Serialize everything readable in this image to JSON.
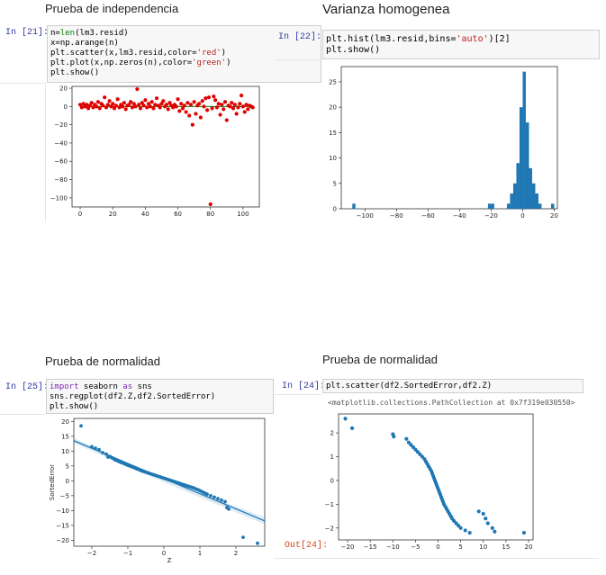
{
  "cells": [
    {
      "id": "independencia",
      "heading": "Prueba de independencia",
      "prompt": "In [21]:",
      "code": [
        "n=len(lm3.resid)",
        "x=np.arange(n)",
        "plt.scatter(x,lm3.resid,color='red')",
        "plt.plot(x,np.zeros(n),color='green')",
        "plt.show()"
      ]
    },
    {
      "id": "varianza",
      "heading": "Varianza homogenea",
      "prompt": "In [22]:",
      "code": [
        "plt.hist(lm3.resid,bins='auto')[2]",
        "plt.show()"
      ]
    },
    {
      "id": "normalidad-regplot",
      "heading": "Prueba de normalidad",
      "prompt": "In [25]:",
      "code": [
        "import seaborn as sns",
        "sns.regplot(df2.Z,df2.SortedError)",
        "plt.show()"
      ]
    },
    {
      "id": "normalidad-scatter",
      "heading": "Prueba de normalidad",
      "prompt": "In [24]:",
      "code": [
        "plt.scatter(df2.SortedError,df2.Z)"
      ],
      "out_prompt": "Out[24]:",
      "out_text": "<matplotlib.collections.PathCollection at 0x7f319e030550>"
    }
  ],
  "colors": {
    "prompt": "#30399f",
    "out_prompt": "#d84315",
    "scatter_red": "#e00000",
    "zero_line": "#008000",
    "hist_bar": "#1f77b4",
    "points_blue": "#1f77b4"
  },
  "chart_data": [
    {
      "type": "scatter",
      "xlim": [
        -5,
        110
      ],
      "ylim": [
        -110,
        22
      ],
      "xticks": [
        0,
        20,
        40,
        60,
        80,
        100
      ],
      "yticks": [
        20,
        0,
        -20,
        -40,
        -60,
        -80,
        -100
      ],
      "xtick_labels": [
        "0",
        "20",
        "40",
        "60",
        "80",
        "100"
      ],
      "ytick_labels": [
        "20",
        "0",
        "−20",
        "−40",
        "−60",
        "−80",
        "−100"
      ],
      "points": [
        [
          0,
          2
        ],
        [
          1,
          -1
        ],
        [
          2,
          3
        ],
        [
          3,
          0
        ],
        [
          4,
          2
        ],
        [
          5,
          -2
        ],
        [
          6,
          1
        ],
        [
          7,
          4
        ],
        [
          8,
          -1
        ],
        [
          9,
          2
        ],
        [
          10,
          0
        ],
        [
          11,
          5
        ],
        [
          12,
          -2
        ],
        [
          13,
          3
        ],
        [
          14,
          1
        ],
        [
          15,
          10
        ],
        [
          16,
          -1
        ],
        [
          17,
          2
        ],
        [
          18,
          6
        ],
        [
          19,
          0
        ],
        [
          20,
          3
        ],
        [
          21,
          -2
        ],
        [
          22,
          1
        ],
        [
          23,
          8
        ],
        [
          24,
          -1
        ],
        [
          25,
          2
        ],
        [
          26,
          0
        ],
        [
          27,
          4
        ],
        [
          28,
          -3
        ],
        [
          29,
          1
        ],
        [
          30,
          2
        ],
        [
          31,
          5
        ],
        [
          32,
          -1
        ],
        [
          33,
          3
        ],
        [
          34,
          0
        ],
        [
          35,
          19
        ],
        [
          36,
          2
        ],
        [
          37,
          -2
        ],
        [
          38,
          4
        ],
        [
          39,
          1
        ],
        [
          40,
          7
        ],
        [
          41,
          -1
        ],
        [
          42,
          3
        ],
        [
          43,
          0
        ],
        [
          44,
          5
        ],
        [
          45,
          -2
        ],
        [
          46,
          2
        ],
        [
          47,
          9
        ],
        [
          48,
          1
        ],
        [
          49,
          -1
        ],
        [
          50,
          3
        ],
        [
          51,
          6
        ],
        [
          52,
          0
        ],
        [
          53,
          2
        ],
        [
          54,
          -3
        ],
        [
          55,
          4
        ],
        [
          56,
          1
        ],
        [
          57,
          -1
        ],
        [
          58,
          2
        ],
        [
          59,
          0
        ],
        [
          60,
          8
        ],
        [
          61,
          -5
        ],
        [
          62,
          3
        ],
        [
          63,
          -2
        ],
        [
          64,
          1
        ],
        [
          65,
          -6
        ],
        [
          66,
          4
        ],
        [
          67,
          -10
        ],
        [
          68,
          2
        ],
        [
          69,
          -20
        ],
        [
          70,
          5
        ],
        [
          71,
          -8
        ],
        [
          72,
          1
        ],
        [
          73,
          3
        ],
        [
          74,
          -12
        ],
        [
          75,
          6
        ],
        [
          76,
          0
        ],
        [
          77,
          9
        ],
        [
          78,
          -4
        ],
        [
          79,
          10
        ],
        [
          80,
          -107
        ],
        [
          81,
          -2
        ],
        [
          82,
          11
        ],
        [
          83,
          7
        ],
        [
          84,
          -1
        ],
        [
          85,
          3
        ],
        [
          86,
          -9
        ],
        [
          87,
          2
        ],
        [
          88,
          -3
        ],
        [
          89,
          5
        ],
        [
          90,
          -15
        ],
        [
          91,
          1
        ],
        [
          92,
          0
        ],
        [
          93,
          4
        ],
        [
          94,
          -2
        ],
        [
          95,
          2
        ],
        [
          96,
          -8
        ],
        [
          97,
          -1
        ],
        [
          98,
          3
        ],
        [
          99,
          12
        ],
        [
          100,
          0
        ],
        [
          101,
          -6
        ],
        [
          102,
          2
        ],
        [
          103,
          -3
        ],
        [
          104,
          1
        ],
        [
          105,
          0
        ],
        [
          106,
          -1
        ]
      ],
      "zero_line": true
    },
    {
      "type": "bar",
      "xlim": [
        -115,
        22
      ],
      "ylim": [
        0,
        28
      ],
      "xticks": [
        -100,
        -80,
        -60,
        -40,
        -20,
        0,
        20
      ],
      "yticks": [
        0,
        5,
        10,
        15,
        20,
        25
      ],
      "xtick_labels": [
        "−100",
        "−80",
        "−60",
        "−40",
        "−20",
        "0",
        "20"
      ],
      "ytick_labels": [
        "0",
        "5",
        "10",
        "15",
        "20",
        "25"
      ],
      "bins": [
        {
          "x0": -108,
          "x1": -106,
          "count": 1
        },
        {
          "x0": -22,
          "x1": -20,
          "count": 1
        },
        {
          "x0": -20,
          "x1": -18,
          "count": 1
        },
        {
          "x0": -10,
          "x1": -8,
          "count": 1
        },
        {
          "x0": -8,
          "x1": -6,
          "count": 3
        },
        {
          "x0": -6,
          "x1": -4,
          "count": 5
        },
        {
          "x0": -4,
          "x1": -2,
          "count": 9
        },
        {
          "x0": -2,
          "x1": 0,
          "count": 20
        },
        {
          "x0": 0,
          "x1": 2,
          "count": 27
        },
        {
          "x0": 2,
          "x1": 4,
          "count": 17
        },
        {
          "x0": 4,
          "x1": 6,
          "count": 8
        },
        {
          "x0": 6,
          "x1": 8,
          "count": 5
        },
        {
          "x0": 8,
          "x1": 10,
          "count": 3
        },
        {
          "x0": 10,
          "x1": 12,
          "count": 1
        },
        {
          "x0": 18,
          "x1": 20,
          "count": 1
        }
      ]
    },
    {
      "type": "scatter",
      "xlabel": "Z",
      "ylabel": "SortedError",
      "xlim": [
        -2.5,
        2.8
      ],
      "ylim": [
        -22,
        21
      ],
      "xticks": [
        -2,
        -1,
        0,
        1,
        2
      ],
      "yticks": [
        20,
        15,
        10,
        5,
        0,
        -5,
        -10,
        -15,
        -20
      ],
      "xtick_labels": [
        "−2",
        "−1",
        "0",
        "1",
        "2"
      ],
      "ytick_labels": [
        "20",
        "15",
        "10",
        "5",
        "0",
        "−5",
        "−10",
        "−15",
        "−20"
      ],
      "regression": {
        "x0": -2.5,
        "y0": 13.5,
        "x1": 2.8,
        "y1": -13.5
      },
      "points": [
        [
          -2.3,
          18.5
        ],
        [
          -2.0,
          11.5
        ],
        [
          -1.9,
          11
        ],
        [
          -1.8,
          10.5
        ],
        [
          -1.7,
          9.5
        ],
        [
          -1.6,
          9
        ],
        [
          -1.55,
          8
        ],
        [
          -1.5,
          8.2
        ],
        [
          -1.45,
          7.8
        ],
        [
          -1.4,
          7.5
        ],
        [
          -1.35,
          7
        ],
        [
          -1.3,
          6.8
        ],
        [
          -1.25,
          6.5
        ],
        [
          -1.2,
          6.2
        ],
        [
          -1.15,
          6
        ],
        [
          -1.1,
          5.8
        ],
        [
          -1.05,
          5.5
        ],
        [
          -1.0,
          5.2
        ],
        [
          -0.95,
          5
        ],
        [
          -0.9,
          4.8
        ],
        [
          -0.85,
          4.5
        ],
        [
          -0.8,
          4.3
        ],
        [
          -0.75,
          4
        ],
        [
          -0.7,
          3.8
        ],
        [
          -0.65,
          3.5
        ],
        [
          -0.6,
          3.3
        ],
        [
          -0.55,
          3.1
        ],
        [
          -0.5,
          2.9
        ],
        [
          -0.45,
          2.7
        ],
        [
          -0.4,
          2.5
        ],
        [
          -0.35,
          2.3
        ],
        [
          -0.3,
          2.1
        ],
        [
          -0.25,
          1.9
        ],
        [
          -0.2,
          1.7
        ],
        [
          -0.15,
          1.5
        ],
        [
          -0.1,
          1.3
        ],
        [
          -0.05,
          1.1
        ],
        [
          0.0,
          0.9
        ],
        [
          0.05,
          0.7
        ],
        [
          0.1,
          0.5
        ],
        [
          0.15,
          0.3
        ],
        [
          0.2,
          0.1
        ],
        [
          0.25,
          -0.1
        ],
        [
          0.3,
          -0.3
        ],
        [
          0.35,
          -0.5
        ],
        [
          0.4,
          -0.7
        ],
        [
          0.45,
          -0.9
        ],
        [
          0.5,
          -1.1
        ],
        [
          0.55,
          -1.3
        ],
        [
          0.6,
          -1.5
        ],
        [
          0.65,
          -1.7
        ],
        [
          0.7,
          -1.9
        ],
        [
          0.75,
          -2.1
        ],
        [
          0.8,
          -2.3
        ],
        [
          0.85,
          -2.5
        ],
        [
          0.9,
          -2.8
        ],
        [
          0.95,
          -3
        ],
        [
          1.0,
          -3.3
        ],
        [
          1.05,
          -3.6
        ],
        [
          1.1,
          -3.9
        ],
        [
          1.15,
          -4.2
        ],
        [
          1.2,
          -4.5
        ],
        [
          1.3,
          -5
        ],
        [
          1.4,
          -5.5
        ],
        [
          1.5,
          -6
        ],
        [
          1.6,
          -6.5
        ],
        [
          1.7,
          -7
        ],
        [
          1.75,
          -9
        ],
        [
          1.8,
          -9.5
        ],
        [
          2.2,
          -19
        ],
        [
          2.6,
          -21
        ]
      ]
    },
    {
      "type": "scatter",
      "xlim": [
        -22,
        21
      ],
      "ylim": [
        -2.5,
        2.8
      ],
      "xticks": [
        -20,
        -15,
        -10,
        -5,
        0,
        5,
        10,
        15,
        20
      ],
      "yticks": [
        2,
        1,
        0,
        -1,
        -2
      ],
      "xtick_labels": [
        "−20",
        "−15",
        "−10",
        "−5",
        "0",
        "5",
        "10",
        "15",
        "20"
      ],
      "ytick_labels": [
        "2",
        "1",
        "0",
        "−1",
        "−2"
      ],
      "points": [
        [
          -20.5,
          2.6
        ],
        [
          -19,
          2.2
        ],
        [
          -10,
          1.95
        ],
        [
          -9.8,
          1.85
        ],
        [
          -7,
          1.75
        ],
        [
          -6.5,
          1.6
        ],
        [
          -6,
          1.5
        ],
        [
          -5.5,
          1.4
        ],
        [
          -5,
          1.3
        ],
        [
          -4.5,
          1.2
        ],
        [
          -4,
          1.1
        ],
        [
          -3.5,
          1.0
        ],
        [
          -3,
          0.9
        ],
        [
          -2.7,
          0.8
        ],
        [
          -2.4,
          0.7
        ],
        [
          -2.1,
          0.6
        ],
        [
          -1.8,
          0.5
        ],
        [
          -1.5,
          0.4
        ],
        [
          -1.3,
          0.3
        ],
        [
          -1.1,
          0.2
        ],
        [
          -0.9,
          0.1
        ],
        [
          -0.7,
          0.0
        ],
        [
          -0.5,
          -0.1
        ],
        [
          -0.3,
          -0.2
        ],
        [
          -0.1,
          -0.3
        ],
        [
          0.1,
          -0.4
        ],
        [
          0.3,
          -0.5
        ],
        [
          0.5,
          -0.6
        ],
        [
          0.7,
          -0.7
        ],
        [
          0.9,
          -0.8
        ],
        [
          1.1,
          -0.9
        ],
        [
          1.3,
          -1.0
        ],
        [
          1.6,
          -1.1
        ],
        [
          1.9,
          -1.2
        ],
        [
          2.2,
          -1.3
        ],
        [
          2.5,
          -1.4
        ],
        [
          2.8,
          -1.5
        ],
        [
          3.1,
          -1.6
        ],
        [
          3.5,
          -1.7
        ],
        [
          4,
          -1.8
        ],
        [
          4.5,
          -1.9
        ],
        [
          5,
          -2.0
        ],
        [
          6,
          -2.1
        ],
        [
          7,
          -2.2
        ],
        [
          9,
          -1.3
        ],
        [
          10,
          -1.4
        ],
        [
          10.5,
          -1.6
        ],
        [
          11,
          -1.8
        ],
        [
          12,
          -2.0
        ],
        [
          12.5,
          -2.15
        ],
        [
          19,
          -2.2
        ]
      ]
    }
  ]
}
